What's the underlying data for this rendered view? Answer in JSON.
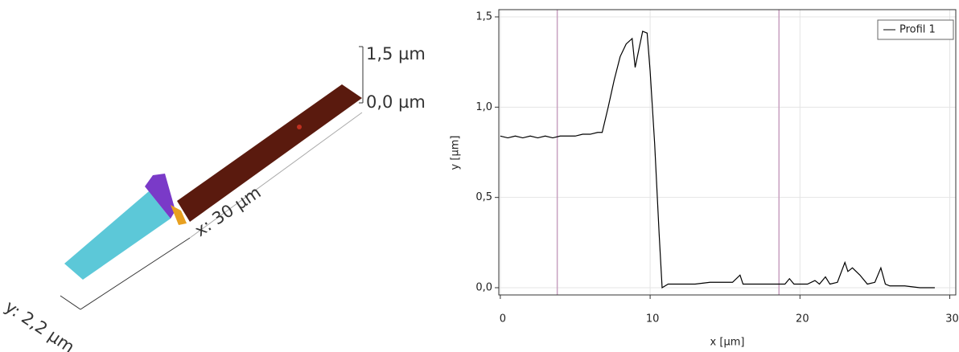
{
  "surface_view": {
    "z_top_label": "1,5 µm",
    "z_bottom_label": "0,0 µm",
    "x_label": "x: 30 µm",
    "y_label": "y: 2,2 µm"
  },
  "chart_data": {
    "type": "line",
    "x_label": "x [µm]",
    "y_label": "y [µm]",
    "xlim": [
      -0.1,
      30.4
    ],
    "ylim": [
      -0.04,
      1.54
    ],
    "xticks": [
      0,
      10,
      20,
      30
    ],
    "yticks": [
      {
        "value": 0,
        "label": "0,0"
      },
      {
        "value": 0.5,
        "label": "0,5"
      },
      {
        "value": 1.0,
        "label": "1,0"
      },
      {
        "value": 1.5,
        "label": "1,5"
      }
    ],
    "grid": true,
    "legend": "top-right",
    "markers": [
      3.8,
      18.6
    ],
    "marker_color": "#c8a0c0",
    "x": [
      0,
      0.5,
      1,
      1.5,
      2,
      2.5,
      3,
      3.5,
      4,
      4.5,
      5,
      5.5,
      6,
      6.5,
      6.8,
      7.2,
      7.6,
      8,
      8.4,
      8.8,
      9,
      9.2,
      9.5,
      9.8,
      10,
      10.3,
      10.6,
      10.8,
      11.2,
      12,
      13,
      14,
      15,
      15.5,
      16,
      16.2,
      17,
      18,
      19,
      19.3,
      19.6,
      20,
      20.5,
      21,
      21.3,
      21.7,
      22,
      22.5,
      23,
      23.2,
      23.5,
      24,
      24.5,
      25,
      25.4,
      25.7,
      26,
      27,
      28,
      29
    ],
    "series": [
      {
        "name": "Profil 1",
        "color": "#000000",
        "values": [
          0.84,
          0.83,
          0.84,
          0.83,
          0.84,
          0.83,
          0.84,
          0.83,
          0.84,
          0.84,
          0.84,
          0.85,
          0.85,
          0.86,
          0.86,
          1.0,
          1.15,
          1.28,
          1.35,
          1.38,
          1.22,
          1.3,
          1.42,
          1.41,
          1.2,
          0.8,
          0.3,
          0.0,
          0.02,
          0.02,
          0.02,
          0.03,
          0.03,
          0.03,
          0.07,
          0.02,
          0.02,
          0.02,
          0.02,
          0.05,
          0.02,
          0.02,
          0.02,
          0.04,
          0.02,
          0.06,
          0.02,
          0.03,
          0.14,
          0.09,
          0.11,
          0.07,
          0.02,
          0.03,
          0.11,
          0.02,
          0.01,
          0.01,
          0.0,
          0.0
        ]
      }
    ]
  }
}
